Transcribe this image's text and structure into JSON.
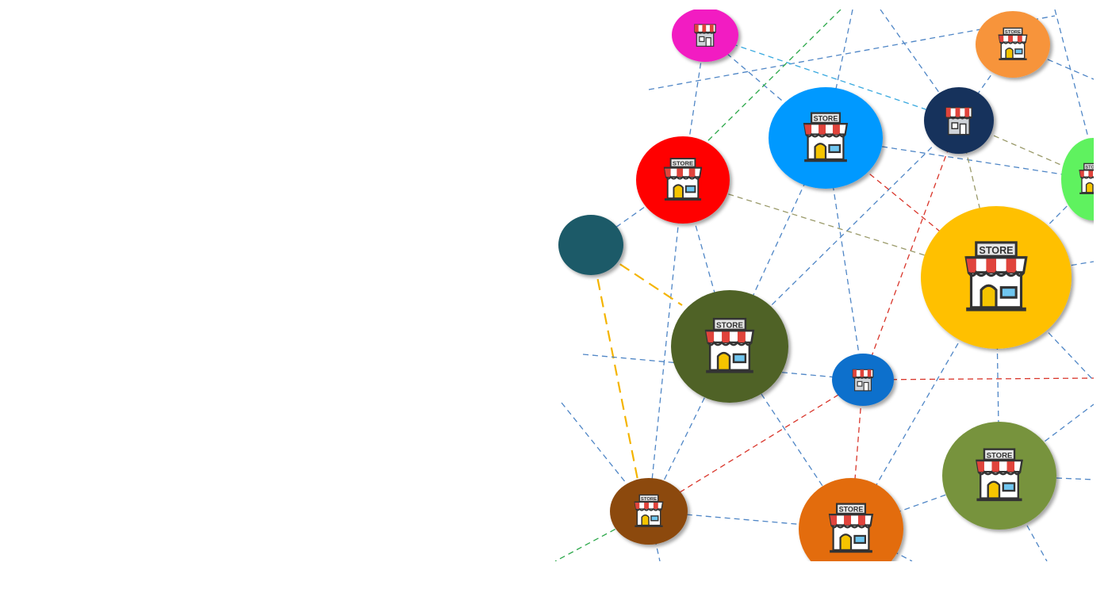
{
  "network": {
    "store_sign": "STORE",
    "nodes": [
      {
        "id": "n-magenta",
        "color": "#F21FC2",
        "icon": "shop-icon",
        "has_sign": false
      },
      {
        "id": "n-orange-top",
        "color": "#F7943A",
        "icon": "store-icon",
        "has_sign": true
      },
      {
        "id": "n-azure",
        "color": "#0099FF",
        "icon": "store-icon",
        "has_sign": true
      },
      {
        "id": "n-navy",
        "color": "#18335C",
        "icon": "shop-icon",
        "has_sign": false
      },
      {
        "id": "n-red",
        "color": "#FF0000",
        "icon": "store-icon",
        "has_sign": true
      },
      {
        "id": "n-green-edge",
        "color": "#5EF25E",
        "icon": "store-icon",
        "has_sign": true
      },
      {
        "id": "n-teal",
        "color": "#1F5A68",
        "icon": "none",
        "has_sign": false
      },
      {
        "id": "n-gold",
        "color": "#FFC000",
        "icon": "store-icon",
        "has_sign": true
      },
      {
        "id": "n-olive",
        "color": "#4F6228",
        "icon": "store-icon",
        "has_sign": true
      },
      {
        "id": "n-blue-small",
        "color": "#0A6FCC",
        "icon": "shop-icon",
        "has_sign": false
      },
      {
        "id": "n-green",
        "color": "#77933C",
        "icon": "store-icon",
        "has_sign": true
      },
      {
        "id": "n-brown",
        "color": "#8C4A10",
        "icon": "store-icon",
        "has_sign": true
      },
      {
        "id": "n-orange-bottom",
        "color": "#E36C09",
        "icon": "store-icon",
        "has_sign": true
      }
    ],
    "link_colors": {
      "default": "#4F86C6",
      "red": "#D9362B",
      "green": "#2CA84A",
      "cyan": "#39A9DF",
      "olive": "#9A9A6A",
      "yellow": "#F4B400"
    }
  }
}
